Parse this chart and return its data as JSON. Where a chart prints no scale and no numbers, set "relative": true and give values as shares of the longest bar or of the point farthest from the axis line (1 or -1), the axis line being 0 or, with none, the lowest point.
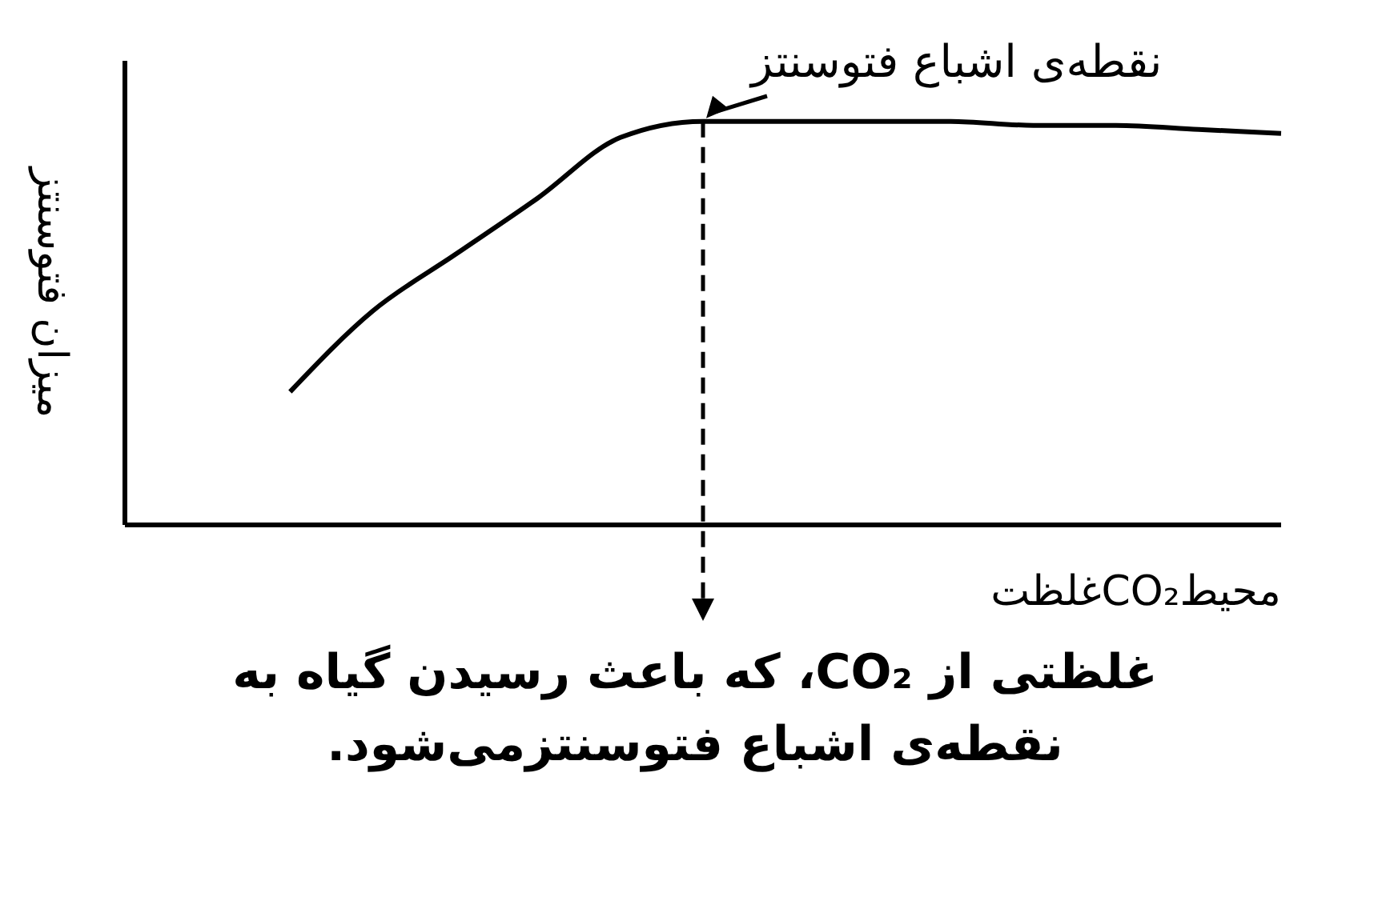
{
  "chart_data": {
    "type": "line",
    "relative": true,
    "xlabel": "غلظتCO₂محیط",
    "ylabel": "میزان فتوسنتز",
    "categories": [
      null,
      null,
      null,
      null,
      null,
      null,
      null,
      null,
      null,
      null,
      null,
      null,
      null,
      null,
      null
    ],
    "values": [
      null,
      null,
      0.33,
      0.53,
      0.67,
      0.81,
      0.96,
      1,
      1,
      1,
      1,
      0.99,
      0.99,
      0.98,
      0.97
    ],
    "color": "#000000",
    "marker": "none",
    "grid": false,
    "legend": false,
    "annotations": [
      "نقطه‌ی اشباع فتوسنتز",
      "غلظتی از CO₂، که باعث رسیدن گیاه به نقطه‌ی اشباع فتوسنتزمی‌شود."
    ]
  }
}
